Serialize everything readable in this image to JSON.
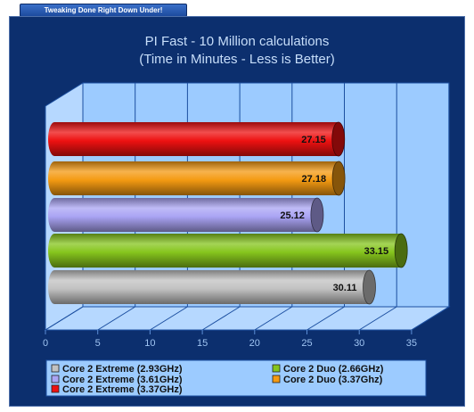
{
  "header": {
    "banner_text": "Tweaking Done Right Down Under!"
  },
  "chart_data": {
    "type": "bar",
    "orientation": "horizontal",
    "title": "PI Fast - 10 Million calculations",
    "subtitle": "(Time in Minutes - Less is Better)",
    "xlim": [
      0,
      35
    ],
    "x_ticks": [
      "0",
      "5",
      "10",
      "15",
      "20",
      "25",
      "30",
      "35"
    ],
    "grid": true,
    "legend_placement": "bottom",
    "series": [
      {
        "name": "Core 2 Extreme (3.37GHz)",
        "value": 27.15,
        "label": "27.15",
        "color": "#ee1111"
      },
      {
        "name": "Core 2 Duo (3.37Ghz)",
        "value": 27.18,
        "label": "27.18",
        "color": "#f49a12"
      },
      {
        "name": "Core 2 Extreme (3.61GHz)",
        "value": 25.12,
        "label": "25.12",
        "color": "#aaa4f4"
      },
      {
        "name": "Core 2 Duo (2.66GHz)",
        "value": 33.15,
        "label": "33.15",
        "color": "#86c51d"
      },
      {
        "name": "Core 2 Extreme (2.93GHz)",
        "value": 30.11,
        "label": "30.11",
        "color": "#c2c2c2"
      }
    ],
    "legend_order": [
      "Core 2 Extreme (2.93GHz)",
      "Core 2 Duo (2.66GHz)",
      "Core 2 Extreme (3.61GHz)",
      "Core 2 Duo (3.37Ghz)",
      "Core 2 Extreme (3.37GHz)"
    ]
  }
}
